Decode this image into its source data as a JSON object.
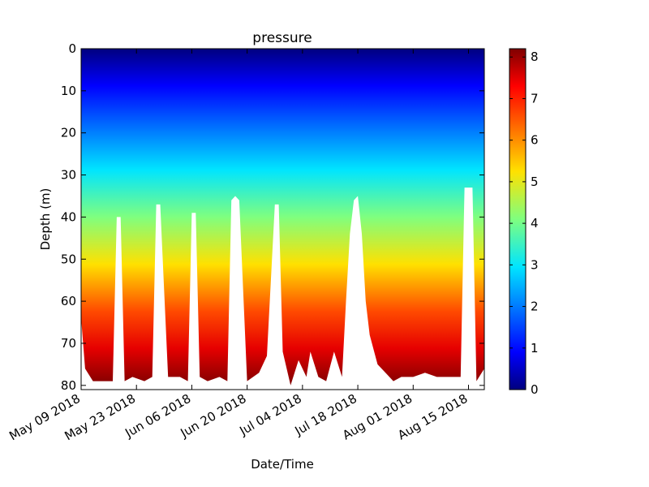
{
  "chart_data": {
    "type": "heatmap",
    "title": "pressure",
    "xlabel": "Date/Time",
    "ylabel": "Depth (m)",
    "x_tick_labels": [
      "May 09 2018",
      "May 23 2018",
      "Jun 06 2018",
      "Jun 20 2018",
      "Jul 04 2018",
      "Jul 18 2018",
      "Aug 01 2018",
      "Aug 15 2018"
    ],
    "x_range": [
      "2018-05-09",
      "2018-08-19"
    ],
    "y_ticks": [
      0,
      10,
      20,
      30,
      40,
      50,
      60,
      70,
      80
    ],
    "ylim": [
      0,
      81
    ],
    "y_inverted": true,
    "colorbar": {
      "ticks": [
        0,
        1,
        2,
        3,
        4,
        5,
        6,
        7,
        8
      ],
      "range": [
        0,
        8.2
      ],
      "colormap": "jet"
    },
    "value_per_depth": "pressure increases with depth (approx. 0.1 per m)",
    "max_depth_profile": {
      "dates": [
        "2018-05-09",
        "2018-05-10",
        "2018-05-12",
        "2018-05-15",
        "2018-05-17",
        "2018-05-18",
        "2018-05-19",
        "2018-05-20",
        "2018-05-22",
        "2018-05-25",
        "2018-05-27",
        "2018-05-28",
        "2018-05-29",
        "2018-05-31",
        "2018-06-03",
        "2018-06-05",
        "2018-06-06",
        "2018-06-07",
        "2018-06-08",
        "2018-06-10",
        "2018-06-13",
        "2018-06-15",
        "2018-06-16",
        "2018-06-17",
        "2018-06-18",
        "2018-06-20",
        "2018-06-23",
        "2018-06-25",
        "2018-06-27",
        "2018-06-28",
        "2018-06-29",
        "2018-07-01",
        "2018-07-03",
        "2018-07-05",
        "2018-07-06",
        "2018-07-08",
        "2018-07-10",
        "2018-07-12",
        "2018-07-14",
        "2018-07-15",
        "2018-07-16",
        "2018-07-17",
        "2018-07-18",
        "2018-07-19",
        "2018-07-20",
        "2018-07-21",
        "2018-07-23",
        "2018-07-25",
        "2018-07-27",
        "2018-07-29",
        "2018-08-01",
        "2018-08-04",
        "2018-08-07",
        "2018-08-10",
        "2018-08-13",
        "2018-08-14",
        "2018-08-15",
        "2018-08-16",
        "2018-08-17",
        "2018-08-19"
      ],
      "depths": [
        64,
        76,
        79,
        79,
        79,
        40,
        40,
        79,
        78,
        79,
        78,
        37,
        37,
        78,
        78,
        79,
        39,
        39,
        78,
        79,
        78,
        79,
        36,
        35,
        36,
        79,
        77,
        73,
        37,
        37,
        72,
        80,
        74,
        78,
        72,
        78,
        79,
        72,
        78,
        60,
        44,
        36,
        35,
        44,
        60,
        68,
        75,
        77,
        79,
        78,
        78,
        77,
        78,
        78,
        78,
        33,
        33,
        33,
        79,
        76
      ]
    }
  }
}
